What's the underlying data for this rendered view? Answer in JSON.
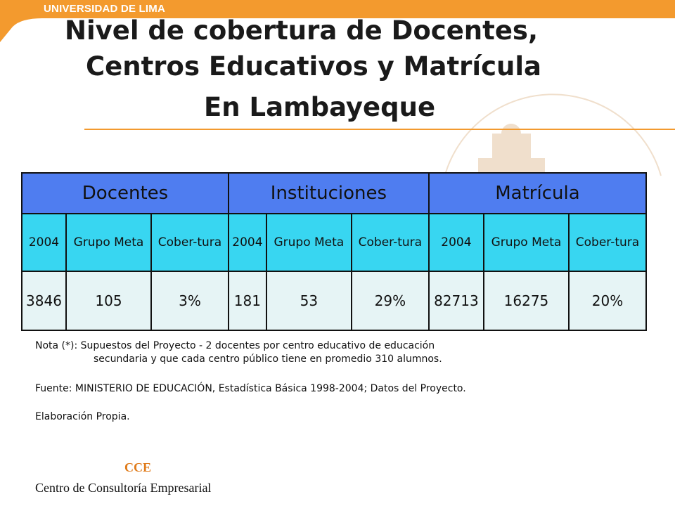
{
  "header": {
    "brand": "UNIVERSIDAD DE LIMA"
  },
  "title": {
    "line1": "Nivel de cobertura de Docentes,",
    "line2": "Centros Educativos y Matrícula",
    "line3": "En Lambayeque"
  },
  "table": {
    "groups": [
      "Docentes",
      "Instituciones",
      "Matrícula"
    ],
    "subheaders": [
      [
        "2004",
        "Grupo Meta",
        "Cober-tura"
      ],
      [
        "2004",
        "Grupo Meta",
        "Cober-tura"
      ],
      [
        "2004",
        "Grupo Meta",
        "Cober-tura"
      ]
    ],
    "values": [
      [
        "3846",
        "105",
        "3%"
      ],
      [
        "181",
        "53",
        "29%"
      ],
      [
        "82713",
        "16275",
        "20%"
      ]
    ]
  },
  "notes": {
    "nota_line1": "Nota (*): Supuestos del Proyecto - 2 docentes por centro educativo de educación",
    "nota_line2": "secundaria y que cada centro público tiene en promedio 310 alumnos.",
    "fuente": "Fuente: MINISTERIO DE EDUCACIÓN, Estadística Básica 1998-2004; Datos del Proyecto.",
    "elaboracion": "Elaboración Propia."
  },
  "footer": {
    "acronym": "CCE",
    "name": "Centro de Consultoría Empresarial"
  },
  "colors": {
    "accent_orange": "#f39a2e",
    "header_blue": "#4f7df0",
    "subheader_cyan": "#38d6f1",
    "value_bg": "#e6f4f5"
  }
}
